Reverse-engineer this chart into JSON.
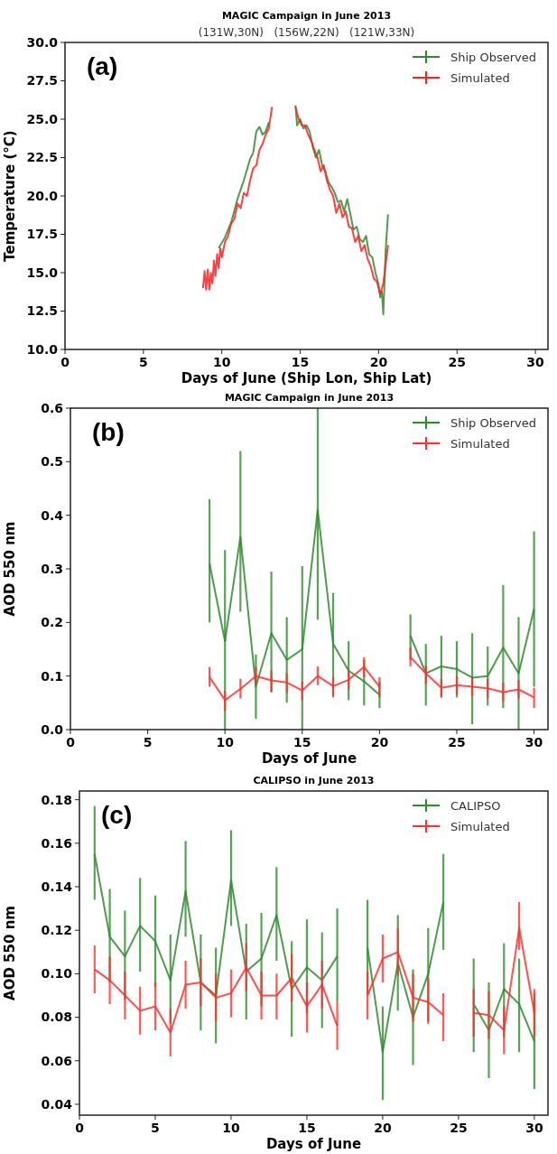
{
  "chart_data": [
    {
      "type": "line",
      "title": "MAGIC Campaign in June 2013",
      "xlabel": "Days of June (Ship Lon, Ship Lat)",
      "ylabel": "Temperature (°C)",
      "subtitle": "(131W,30N)   (156W,22N)   (121W,33N)",
      "annotations": [
        "(a)"
      ],
      "legend": "top right",
      "xlim": [
        0,
        30.8
      ],
      "xticks": [
        0,
        5,
        10,
        15,
        20,
        25,
        30
      ],
      "ylim": [
        10,
        30
      ],
      "yticks": [
        {
          "value": 10,
          "label": "10.0"
        },
        {
          "value": 12.5,
          "label": "12.5"
        },
        {
          "value": 15,
          "label": "15.0"
        },
        {
          "value": 17.5,
          "label": "17.5"
        },
        {
          "value": 20,
          "label": "20.0"
        },
        {
          "value": 22.5,
          "label": "22.5"
        },
        {
          "value": 25,
          "label": "25.0"
        },
        {
          "value": 27.5,
          "label": "27.5"
        },
        {
          "value": 30,
          "label": "30.0"
        }
      ],
      "series": [
        {
          "name": "Ship Observed",
          "color": "#2e8b2e",
          "x": [
            9.8,
            10.2,
            10.6,
            11.0,
            11.4,
            11.8,
            12.0,
            12.2,
            12.4,
            12.6,
            12.8,
            13.0,
            13.2,
            14.0,
            14.7,
            14.8,
            15.0,
            15.2,
            15.4,
            15.6,
            15.8,
            16.0,
            16.2,
            16.4,
            16.6,
            16.8,
            17.0,
            17.2,
            17.4,
            17.6,
            17.8,
            18.0,
            18.2,
            18.4,
            18.6,
            18.8,
            19.0,
            19.2,
            19.4,
            19.6,
            19.8,
            20.0,
            20.1,
            20.2,
            20.3,
            20.45,
            20.6
          ],
          "values": [
            16.6,
            17.3,
            18.3,
            19.8,
            21.0,
            22.4,
            22.8,
            24.2,
            24.5,
            24.0,
            24.2,
            24.8,
            null,
            null,
            25.9,
            24.6,
            25.0,
            24.4,
            24.6,
            24.2,
            23.2,
            22.5,
            23.0,
            22.0,
            21.6,
            20.9,
            20.6,
            20.2,
            19.6,
            19.7,
            19.0,
            19.8,
            18.8,
            17.8,
            18.0,
            17.2,
            17.0,
            17.4,
            16.2,
            16.0,
            15.0,
            14.2,
            13.4,
            13.8,
            12.3,
            16.5,
            18.8
          ]
        },
        {
          "name": "Simulated",
          "color": "#ff2020",
          "x": [
            8.8,
            8.9,
            9.0,
            9.1,
            9.2,
            9.3,
            9.4,
            9.5,
            9.6,
            9.7,
            9.8,
            9.9,
            10.0,
            10.2,
            10.4,
            10.6,
            10.8,
            11.0,
            11.2,
            11.4,
            11.6,
            11.8,
            12.0,
            12.2,
            12.4,
            12.6,
            12.8,
            13.0,
            13.2,
            14.0,
            14.7,
            14.9,
            15.1,
            15.3,
            15.5,
            15.7,
            15.9,
            16.1,
            16.3,
            16.5,
            16.7,
            16.9,
            17.1,
            17.3,
            17.5,
            17.7,
            17.9,
            18.1,
            18.3,
            18.5,
            18.7,
            18.9,
            19.1,
            19.3,
            19.5,
            19.7,
            19.9,
            20.1,
            20.3,
            20.5,
            20.6
          ],
          "values": [
            14.0,
            15.1,
            13.9,
            15.2,
            13.9,
            15.0,
            14.3,
            15.8,
            14.8,
            16.2,
            15.3,
            16.6,
            16.0,
            17.0,
            17.4,
            18.2,
            18.5,
            19.5,
            19.2,
            20.2,
            20.0,
            21.0,
            21.8,
            22.0,
            23.0,
            23.4,
            24.0,
            24.4,
            25.8,
            null,
            25.8,
            25.0,
            24.6,
            24.6,
            24.0,
            23.6,
            23.0,
            22.5,
            21.6,
            22.0,
            21.0,
            20.4,
            20.0,
            18.9,
            19.5,
            18.6,
            19.0,
            18.0,
            17.9,
            17.0,
            17.4,
            16.4,
            16.8,
            15.9,
            15.4,
            14.6,
            14.4,
            13.6,
            14.3,
            16.0,
            16.8
          ]
        }
      ]
    },
    {
      "type": "line",
      "title": "MAGIC Campaign in June 2013",
      "xlabel": "Days of June",
      "ylabel": "AOD 550 nm",
      "annotations": [
        "(b)"
      ],
      "legend": "top right",
      "xlim": [
        0,
        30.9
      ],
      "xticks": [
        0,
        5,
        10,
        15,
        20,
        25,
        30
      ],
      "ylim": [
        0,
        0.6
      ],
      "yticks": [
        {
          "value": 0,
          "label": "0.0"
        },
        {
          "value": 0.1,
          "label": "0.1"
        },
        {
          "value": 0.2,
          "label": "0.2"
        },
        {
          "value": 0.3,
          "label": "0.3"
        },
        {
          "value": 0.4,
          "label": "0.4"
        },
        {
          "value": 0.5,
          "label": "0.5"
        },
        {
          "value": 0.6,
          "label": "0.6"
        }
      ],
      "x": [
        9,
        10,
        11,
        12,
        13,
        14,
        15,
        16,
        17,
        18,
        19,
        20,
        21,
        22,
        23,
        24,
        25,
        26,
        27,
        28,
        29,
        30
      ],
      "series": [
        {
          "name": "Ship Observed",
          "color": "#2e8b2e",
          "values": [
            0.31,
            0.165,
            0.36,
            0.08,
            0.18,
            0.13,
            0.15,
            0.41,
            0.16,
            0.11,
            0.09,
            0.065,
            null,
            0.175,
            0.105,
            0.118,
            0.113,
            0.097,
            0.1,
            0.153,
            0.105,
            0.225
          ],
          "errors": [
            [
              0.2,
              0.43
            ],
            [
              0,
              0.335
            ],
            [
              0.22,
              0.52
            ],
            [
              0.02,
              0.14
            ],
            [
              0.07,
              0.295
            ],
            [
              0.05,
              0.21
            ],
            [
              0,
              0.305
            ],
            [
              0.205,
              0.6
            ],
            [
              0.06,
              0.255
            ],
            [
              0.055,
              0.165
            ],
            [
              0.045,
              0.13
            ],
            [
              0.04,
              0.09
            ],
            null,
            [
              0.13,
              0.215
            ],
            [
              0.045,
              0.16
            ],
            [
              0.06,
              0.175
            ],
            [
              0.06,
              0.165
            ],
            [
              0.01,
              0.18
            ],
            [
              0.045,
              0.155
            ],
            [
              0.04,
              0.27
            ],
            [
              0,
              0.21
            ],
            [
              0.08,
              0.37
            ]
          ]
        },
        {
          "name": "Simulated",
          "color": "#ff3030",
          "values": [
            0.098,
            0.055,
            0.076,
            0.1,
            0.092,
            0.088,
            0.073,
            0.1,
            0.081,
            0.093,
            0.117,
            0.08,
            null,
            0.135,
            0.105,
            0.078,
            0.083,
            0.08,
            0.077,
            0.07,
            0.075,
            0.06
          ],
          "errors": [
            [
              0.08,
              0.117
            ],
            [
              0.035,
              0.072
            ],
            [
              0.058,
              0.095
            ],
            [
              0.085,
              0.117
            ],
            [
              0.07,
              0.11
            ],
            [
              0.068,
              0.105
            ],
            [
              0.055,
              0.09
            ],
            [
              0.083,
              0.118
            ],
            [
              0.063,
              0.098
            ],
            [
              0.075,
              0.11
            ],
            [
              0.098,
              0.135
            ],
            [
              0.06,
              0.098
            ],
            null,
            [
              0.118,
              0.153
            ],
            [
              0.085,
              0.12
            ],
            [
              0.06,
              0.095
            ],
            [
              0.065,
              0.1
            ],
            [
              0.062,
              0.097
            ],
            [
              0.058,
              0.095
            ],
            [
              0.052,
              0.088
            ],
            [
              0.058,
              0.092
            ],
            [
              0.04,
              0.078
            ]
          ]
        }
      ]
    },
    {
      "type": "line",
      "title": "CALIPSO in June 2013",
      "xlabel": "Days of June",
      "ylabel": "AOD 550 nm",
      "annotations": [
        "(c)"
      ],
      "legend": "top right",
      "xlim": [
        0,
        30.9
      ],
      "xticks": [
        0,
        5,
        10,
        15,
        20,
        25,
        30
      ],
      "ylim": [
        0.035,
        0.184
      ],
      "yticks": [
        {
          "value": 0.04,
          "label": "0.04"
        },
        {
          "value": 0.06,
          "label": "0.06"
        },
        {
          "value": 0.08,
          "label": "0.08"
        },
        {
          "value": 0.1,
          "label": "0.10"
        },
        {
          "value": 0.12,
          "label": "0.12"
        },
        {
          "value": 0.14,
          "label": "0.14"
        },
        {
          "value": 0.16,
          "label": "0.16"
        },
        {
          "value": 0.18,
          "label": "0.18"
        }
      ],
      "x": [
        1,
        2,
        3,
        4,
        5,
        6,
        7,
        8,
        9,
        10,
        11,
        12,
        13,
        14,
        15,
        16,
        17,
        18,
        19,
        20,
        21,
        22,
        23,
        24,
        25,
        26,
        27,
        28,
        29,
        30
      ],
      "series": [
        {
          "name": "CALIPSO",
          "color": "#2e8b2e",
          "values": [
            0.155,
            0.117,
            0.108,
            0.122,
            0.115,
            0.097,
            0.138,
            0.096,
            0.09,
            0.143,
            0.101,
            0.107,
            0.127,
            0.093,
            0.103,
            0.097,
            0.108,
            null,
            0.112,
            0.064,
            0.105,
            0.08,
            0.1,
            0.133,
            null,
            0.086,
            0.074,
            0.093,
            0.086,
            0.069
          ],
          "errors": [
            [
              0.134,
              0.177
            ],
            [
              0.096,
              0.139
            ],
            [
              0.088,
              0.129
            ],
            [
              0.101,
              0.144
            ],
            [
              0.094,
              0.136
            ],
            [
              0.077,
              0.118
            ],
            [
              0.117,
              0.161
            ],
            [
              0.074,
              0.118
            ],
            [
              0.068,
              0.112
            ],
            [
              0.122,
              0.166
            ],
            [
              0.079,
              0.123
            ],
            [
              0.085,
              0.128
            ],
            [
              0.106,
              0.149
            ],
            [
              0.071,
              0.115
            ],
            [
              0.082,
              0.125
            ],
            [
              0.075,
              0.119
            ],
            [
              0.087,
              0.13
            ],
            null,
            [
              0.091,
              0.134
            ],
            [
              0.042,
              0.085
            ],
            [
              0.083,
              0.127
            ],
            [
              0.058,
              0.102
            ],
            [
              0.078,
              0.121
            ],
            [
              0.111,
              0.155
            ],
            null,
            [
              0.064,
              0.107
            ],
            [
              0.052,
              0.096
            ],
            [
              0.071,
              0.114
            ],
            [
              0.064,
              0.107
            ],
            [
              0.047,
              0.091
            ]
          ]
        },
        {
          "name": "Simulated",
          "color": "#ff3030",
          "values": [
            0.102,
            0.097,
            0.09,
            0.083,
            0.085,
            0.073,
            0.095,
            0.096,
            0.089,
            0.091,
            0.103,
            0.09,
            0.09,
            0.098,
            0.085,
            0.095,
            0.076,
            null,
            0.09,
            0.107,
            0.11,
            0.089,
            0.087,
            0.081,
            null,
            0.082,
            0.081,
            0.074,
            0.121,
            0.082
          ],
          "errors": [
            [
              0.091,
              0.113
            ],
            [
              0.086,
              0.108
            ],
            [
              0.079,
              0.101
            ],
            [
              0.072,
              0.094
            ],
            [
              0.074,
              0.096
            ],
            [
              0.062,
              0.084
            ],
            [
              0.084,
              0.106
            ],
            [
              0.085,
              0.107
            ],
            [
              0.078,
              0.1
            ],
            [
              0.08,
              0.102
            ],
            [
              0.092,
              0.114
            ],
            [
              0.079,
              0.101
            ],
            [
              0.079,
              0.1
            ],
            [
              0.087,
              0.109
            ],
            [
              0.073,
              0.096
            ],
            [
              0.084,
              0.106
            ],
            [
              0.065,
              0.087
            ],
            null,
            [
              0.079,
              0.101
            ],
            [
              0.096,
              0.118
            ],
            [
              0.099,
              0.121
            ],
            [
              0.078,
              0.1
            ],
            [
              0.077,
              0.098
            ],
            [
              0.069,
              0.091
            ],
            null,
            [
              0.071,
              0.093
            ],
            [
              0.07,
              0.092
            ],
            [
              0.063,
              0.085
            ],
            [
              0.111,
              0.133
            ],
            [
              0.071,
              0.093
            ]
          ]
        }
      ]
    }
  ]
}
